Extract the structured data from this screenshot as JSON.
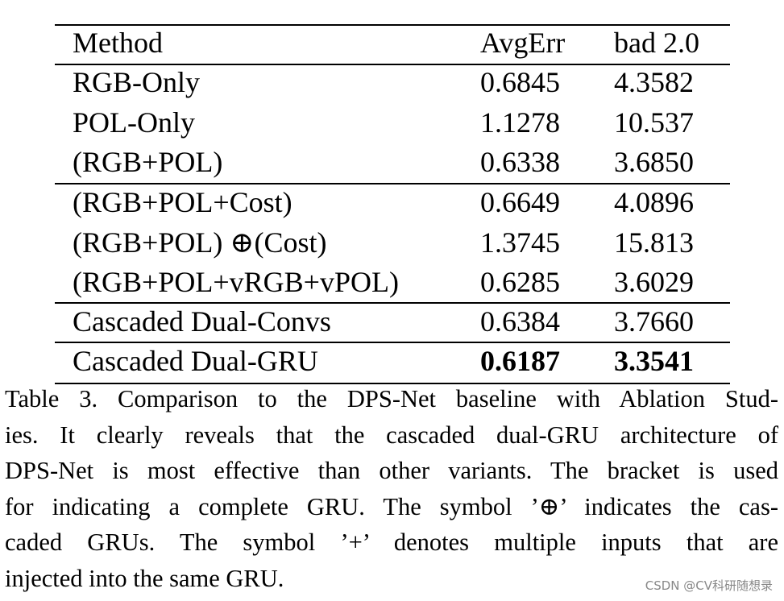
{
  "table": {
    "header": [
      "Method",
      "AvgErr",
      "bad 2.0"
    ],
    "rows": [
      [
        "RGB-Only",
        "0.6845",
        "4.3582"
      ],
      [
        "POL-Only",
        "1.1278",
        "10.537"
      ],
      [
        "(RGB+POL)",
        "0.6338",
        "3.6850"
      ],
      [
        "(RGB+POL+Cost)",
        "0.6649",
        "4.0896"
      ],
      [
        "(RGB+POL) ⊕(Cost)",
        "1.3745",
        "15.813"
      ],
      [
        "(RGB+POL+vRGB+vPOL)",
        "0.6285",
        "3.6029"
      ],
      [
        "Cascaded Dual-Convs",
        "0.6384",
        "3.7660"
      ],
      [
        "Cascaded Dual-GRU",
        "0.6187",
        "3.3541"
      ]
    ]
  },
  "caption": {
    "lines": [
      "Table 3. Comparison to the DPS-Net baseline with Ablation Stud-",
      "ies. It clearly reveals that the cascaded dual-GRU architecture of",
      "DPS-Net is most effective than other variants. The bracket is used",
      "for indicating a complete GRU. The symbol ’⊕’ indicates the cas-",
      "caded GRUs.  The symbol ’+’ denotes multiple inputs that are",
      "injected into the same GRU."
    ]
  },
  "watermark": "CSDN @CV科研随想录"
}
